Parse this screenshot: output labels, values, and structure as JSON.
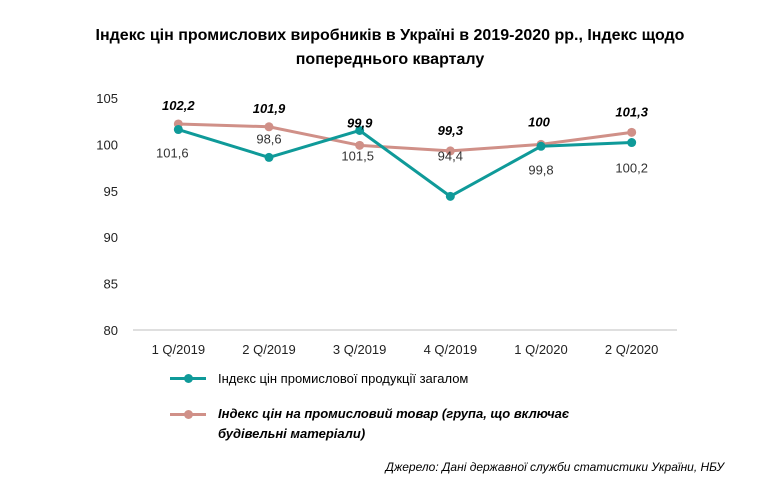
{
  "title": {
    "line1": "Індекс цін промислових виробників в Україні  в 2019-2020 рр., Індекс щодо",
    "line2": "попереднього кварталу"
  },
  "chart_data": {
    "type": "line",
    "categories": [
      "1 Q/2019",
      "2 Q/2019",
      "3 Q/2019",
      "4 Q/2019",
      "1 Q/2020",
      "2 Q/2020"
    ],
    "ylim": [
      80,
      105
    ],
    "yticks": [
      "80",
      "85",
      "90",
      "95",
      "100",
      "105"
    ],
    "grid": false,
    "legend_position": "bottom",
    "series": [
      {
        "name": "Індекс  цін промислової продукції загалом",
        "values": [
          101.6,
          98.6,
          101.5,
          94.4,
          99.8,
          100.2
        ],
        "labels": [
          "101,6",
          "98,6",
          "101,5",
          "94,4",
          "99,8",
          "100,2"
        ],
        "color": "#0f9a99"
      },
      {
        "name": "Індекс  цін на промисловий  товар  (група,  що  включає будівельні  матеріали)",
        "values": [
          102.2,
          101.9,
          99.9,
          99.3,
          100,
          101.3
        ],
        "labels": [
          "102,2",
          "101,9",
          "99,9",
          "99,3",
          "100",
          "101,3"
        ],
        "color": "#d09088"
      }
    ]
  },
  "source": "Джерело: Дані державної служби статистики України, НБУ"
}
